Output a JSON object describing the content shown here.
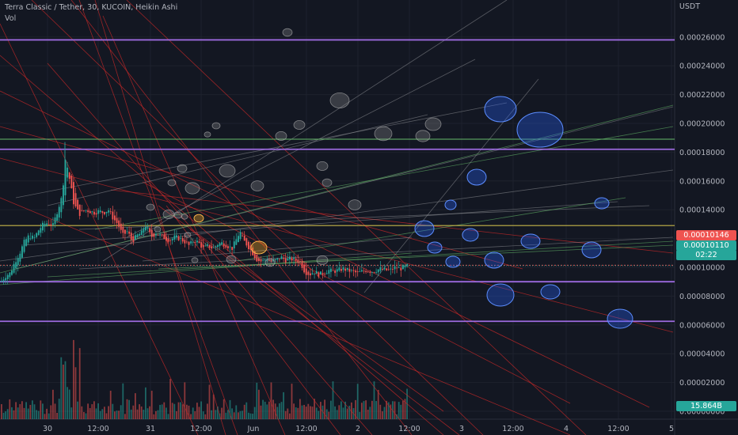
{
  "header": {
    "title": "Terra Classic / Tether, 30, KUCOIN, Heikin Ashi",
    "vol_label": "Vol"
  },
  "currency": "USDT",
  "price_tags": {
    "last": "0.00010146",
    "bid": "0.00010110",
    "countdown": "02:22",
    "volume": "15.864B"
  },
  "colors": {
    "background": "#131722",
    "up": "#26a69a",
    "down": "#ef5350",
    "purple_line": "#9c6ade",
    "green_line": "#66bb6a",
    "olive_line": "#c6b64a",
    "red_line": "#c62828",
    "grey_line": "#8f9196",
    "blue_circle": "#2962ff"
  },
  "chart_data": {
    "type": "candlestick",
    "style": "Heikin Ashi",
    "interval": "30",
    "exchange": "KUCOIN",
    "x_ticks": [
      "30",
      "12:00",
      "31",
      "12:00",
      "Jun",
      "12:00",
      "2",
      "12:00",
      "3",
      "12:00",
      "4",
      "12:00",
      "5"
    ],
    "y_ticks": [
      "0.00026000",
      "0.00024000",
      "0.00022000",
      "0.00020000",
      "0.00018000",
      "0.00016000",
      "0.00014000",
      "0.00012000",
      "0.00010000",
      "0.00008000",
      "0.00006000",
      "0.00004000",
      "0.00002000",
      "0.00000000"
    ],
    "ylim": [
      -5.5e-06,
      0.0002857
    ],
    "horizontal_levels": [
      {
        "price": 0.000258,
        "color": "purple"
      },
      {
        "price": 0.000189,
        "color": "green"
      },
      {
        "price": 0.000182,
        "color": "purple"
      },
      {
        "price": 0.000129,
        "color": "olive"
      },
      {
        "price": 9e-05,
        "color": "purple"
      },
      {
        "price": 6.25e-05,
        "color": "purple"
      }
    ],
    "close_path": [
      [
        0,
        9e-05
      ],
      [
        6,
        9.4e-05
      ],
      [
        12,
        9.6e-05
      ],
      [
        18,
        0.000104
      ],
      [
        24,
        0.00011
      ],
      [
        30,
        0.000118
      ],
      [
        36,
        0.000122
      ],
      [
        42,
        0.00012
      ],
      [
        48,
        0.000126
      ],
      [
        54,
        0.00013
      ],
      [
        60,
        0.000131
      ],
      [
        66,
        0.000129
      ],
      [
        72,
        0.00014
      ],
      [
        78,
        0.00015
      ],
      [
        81,
        0.000176
      ],
      [
        84,
        0.00017
      ],
      [
        88,
        0.000158
      ],
      [
        92,
        0.000145
      ],
      [
        96,
        0.00014
      ],
      [
        100,
        0.000137
      ],
      [
        106,
        0.00014
      ],
      [
        112,
        0.000139
      ],
      [
        118,
        0.000138
      ],
      [
        124,
        0.000139
      ],
      [
        130,
        0.000138
      ],
      [
        136,
        0.00014
      ],
      [
        142,
        0.000134
      ],
      [
        148,
        0.00013
      ],
      [
        154,
        0.000122
      ],
      [
        160,
        0.000125
      ],
      [
        166,
        0.000118
      ],
      [
        172,
        0.000122
      ],
      [
        178,
        0.000124
      ],
      [
        182,
        0.00013
      ],
      [
        186,
        0.000126
      ],
      [
        190,
        0.000121
      ],
      [
        196,
        0.000124
      ],
      [
        202,
        0.000122
      ],
      [
        208,
        0.00012
      ],
      [
        214,
        0.000119
      ],
      [
        220,
        0.000121
      ],
      [
        226,
        0.00012
      ],
      [
        232,
        0.000118
      ],
      [
        238,
        0.000115
      ],
      [
        244,
        0.000119
      ],
      [
        250,
        0.000117
      ],
      [
        256,
        0.000113
      ],
      [
        262,
        0.000115
      ],
      [
        268,
        0.000113
      ],
      [
        274,
        0.000116
      ],
      [
        280,
        0.000117
      ],
      [
        286,
        0.000115
      ],
      [
        292,
        0.000113
      ],
      [
        298,
        0.00012
      ],
      [
        302,
        0.000125
      ],
      [
        306,
        0.000119
      ],
      [
        312,
        0.000115
      ],
      [
        318,
        0.00011
      ],
      [
        324,
        0.000105
      ],
      [
        330,
        0.000104
      ],
      [
        336,
        0.000106
      ],
      [
        342,
        0.000104
      ],
      [
        348,
        0.000105
      ],
      [
        354,
        0.000107
      ],
      [
        360,
        0.000105
      ],
      [
        366,
        0.000106
      ],
      [
        372,
        0.000105
      ],
      [
        378,
        0.000104
      ],
      [
        384,
        9.7e-05
      ],
      [
        390,
        9.5e-05
      ],
      [
        396,
        9.7e-05
      ],
      [
        402,
        9.5e-05
      ],
      [
        408,
        9.6e-05
      ],
      [
        414,
        9.8e-05
      ],
      [
        420,
        9.7e-05
      ],
      [
        426,
        9.8e-05
      ],
      [
        432,
        9.9e-05
      ],
      [
        438,
        9.8e-05
      ],
      [
        444,
        9.7e-05
      ],
      [
        450,
        9.6e-05
      ],
      [
        456,
        9.7e-05
      ],
      [
        462,
        9.8e-05
      ],
      [
        468,
        9.7e-05
      ],
      [
        474,
        9.8e-05
      ],
      [
        480,
        9.9e-05
      ],
      [
        486,
        9.8e-05
      ],
      [
        492,
        9.8e-05
      ],
      [
        498,
        0.0001
      ],
      [
        504,
        9.9e-05
      ],
      [
        510,
        0.0001
      ],
      [
        514,
        0.000101
      ]
    ]
  }
}
